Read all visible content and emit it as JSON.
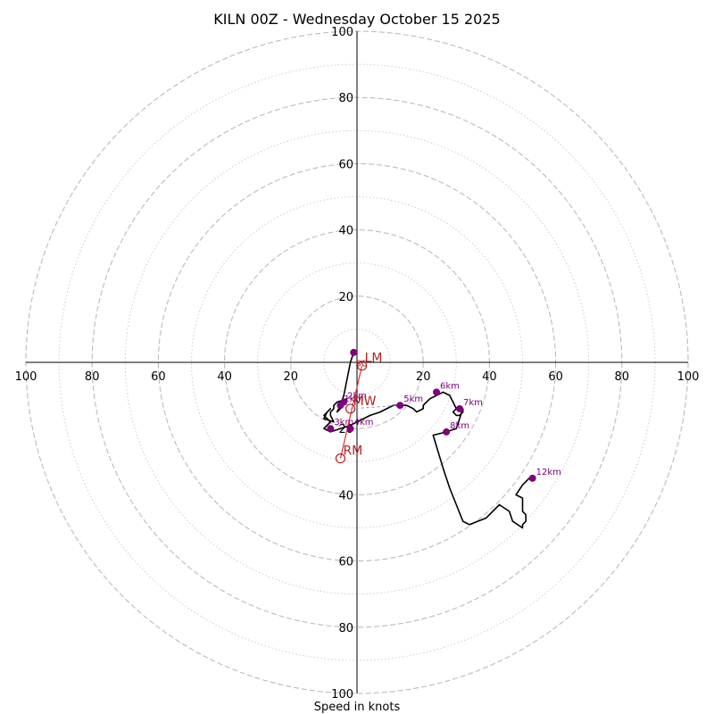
{
  "chart_data": {
    "type": "line",
    "title": "KILN 00Z - Wednesday October 15 2025",
    "xlabel": "Speed in knots",
    "ylabel": "",
    "xlim": [
      -100,
      100
    ],
    "ylim": [
      -100,
      100
    ],
    "grid": true,
    "rings_major": [
      20,
      40,
      60,
      80,
      100
    ],
    "rings_minor": [
      10,
      30,
      50,
      70,
      90
    ],
    "tick_values": [
      100,
      80,
      60,
      40,
      20
    ],
    "tick_labels": [
      "100",
      "80",
      "60",
      "40",
      "20"
    ],
    "colors": {
      "hodograph": "#000000",
      "height_markers": "#800080",
      "motion_markers": "#b22222",
      "major_grid": "#bbbbbb",
      "minor_grid": "#cccccc",
      "shear_line": "#dd3333",
      "dotted_line": "#9090d0"
    },
    "series": [
      {
        "x": [
          -1,
          -2,
          -3,
          -4,
          -5,
          -6,
          -5,
          -4,
          -3,
          -6,
          -7,
          -7,
          -8,
          -8,
          -7,
          -10,
          -9,
          -8,
          -10,
          -9,
          -9,
          -8,
          -9,
          -10,
          -8,
          -5,
          -2,
          2,
          4,
          7,
          9,
          11,
          13,
          15,
          17,
          18,
          20,
          20,
          21,
          22,
          24,
          26,
          28,
          29,
          30,
          29,
          30,
          31,
          32,
          32,
          30,
          27,
          23,
          26,
          28,
          30,
          32,
          34,
          39,
          43,
          46,
          47,
          50,
          50,
          51,
          51,
          50,
          50,
          48,
          50,
          52,
          53
        ],
        "y": [
          3,
          0,
          -5,
          -10,
          -13,
          -15,
          -14,
          -12,
          -11,
          -12,
          -13,
          -14,
          -15,
          -16,
          -18,
          -17,
          -15,
          -14,
          -16,
          -17,
          -17,
          -18,
          -19,
          -20,
          -21,
          -20,
          -19,
          -17,
          -16,
          -15,
          -14,
          -13,
          -13,
          -13,
          -14,
          -15,
          -14,
          -13,
          -12,
          -11,
          -10,
          -9,
          -10,
          -12,
          -14,
          -15,
          -16,
          -16,
          -15,
          -14,
          -20,
          -21,
          -22,
          -32,
          -38,
          -43,
          -48,
          -49,
          -47,
          -43,
          -45,
          -48,
          -50,
          -49,
          -48,
          -46,
          -45,
          -41,
          -40,
          -37,
          -35,
          -35
        ]
      }
    ],
    "height_markers": [
      {
        "label": "",
        "x": -1,
        "y": 3
      },
      {
        "label": "1km",
        "x": -5,
        "y": -13
      },
      {
        "label": "2km",
        "x": -4,
        "y": -12
      },
      {
        "label": "3km",
        "x": -8,
        "y": -20
      },
      {
        "label": "4km",
        "x": -2,
        "y": -20
      },
      {
        "label": "5km",
        "x": 13,
        "y": -13
      },
      {
        "label": "6km",
        "x": 24,
        "y": -9
      },
      {
        "label": "7km",
        "x": 31,
        "y": -14
      },
      {
        "label": "8km",
        "x": 27,
        "y": -21
      },
      {
        "label": "12km",
        "x": 53,
        "y": -35
      }
    ],
    "storm_motion_markers": [
      {
        "label": "LM",
        "x": 1.5,
        "y": -1
      },
      {
        "label": "MW",
        "x": -2,
        "y": -14
      },
      {
        "label": "RM",
        "x": -5,
        "y": -29
      }
    ],
    "extra_labels": [
      {
        "label": "SC",
        "x": -1,
        "y": -1
      }
    ]
  }
}
